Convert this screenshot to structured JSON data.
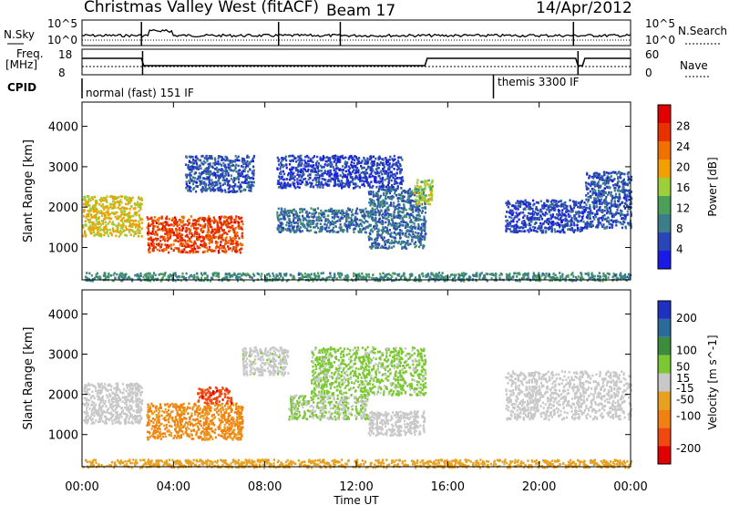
{
  "header": {
    "title": "Christmas Valley West (fitACF)",
    "beam": "Beam 17",
    "date": "14/Apr/2012"
  },
  "status_panels": {
    "nsky_label": "N.Sky",
    "nsky_tick_top": "10^5",
    "nsky_tick_bottom": "10^0",
    "nsearch_tick_top": "10^5",
    "nsearch_tick_bottom": "10^0",
    "nsearch_label": "N.Search",
    "freq_label_line1": "Freq.",
    "freq_label_line2": "[MHz]",
    "freq_tick_top": "18",
    "freq_tick_bottom": "8",
    "nave_tick_top": "60",
    "nave_tick_bottom": "0",
    "nave_label": "Nave",
    "cpid_label": "CPID",
    "cpid_segments": [
      "normal (fast) 151 IF",
      "themis 3300 IF"
    ]
  },
  "colors": {
    "power_scale": [
      "#1a1ae6",
      "#2a45b8",
      "#3b7e8a",
      "#4a9f5a",
      "#9ccf3a",
      "#f0a000",
      "#f07000",
      "#e83000",
      "#e00000"
    ],
    "velocity_scale": [
      "#2030c0",
      "#2a6b9a",
      "#3c8c3c",
      "#7bc832",
      "#c8c8c8",
      "#e8a020",
      "#f08010",
      "#f04810",
      "#e00000"
    ]
  },
  "chart_data": [
    {
      "type": "heatmap",
      "name": "power",
      "ylabel": "Slant Range [km]",
      "xlabel": "Time UT",
      "x_ticks": [
        "00:00",
        "04:00",
        "08:00",
        "12:00",
        "16:00",
        "20:00",
        "00:00"
      ],
      "x_range_hours": [
        0,
        24
      ],
      "y_ticks": [
        1000,
        2000,
        3000,
        4000
      ],
      "ylim": [
        200,
        4600
      ],
      "colorbar": {
        "label": "Power [dB]",
        "ticks": [
          4,
          8,
          12,
          16,
          20,
          24,
          28
        ],
        "range": [
          0,
          32
        ]
      },
      "regions": [
        {
          "t0": 0.0,
          "t1": 2.6,
          "r0": 1300,
          "r1": 2300,
          "value": 18
        },
        {
          "t0": 2.8,
          "t1": 7.0,
          "r0": 900,
          "r1": 1800,
          "value": 26
        },
        {
          "t0": 4.5,
          "t1": 7.5,
          "r0": 2400,
          "r1": 3300,
          "value": 6
        },
        {
          "t0": 8.5,
          "t1": 12.5,
          "r0": 1400,
          "r1": 2000,
          "value": 8
        },
        {
          "t0": 8.5,
          "t1": 14.0,
          "r0": 2500,
          "r1": 3300,
          "value": 5
        },
        {
          "t0": 12.5,
          "t1": 15.0,
          "r0": 1000,
          "r1": 2500,
          "value": 8
        },
        {
          "t0": 14.5,
          "t1": 15.3,
          "r0": 2100,
          "r1": 2700,
          "value": 16
        },
        {
          "t0": 18.5,
          "t1": 22.0,
          "r0": 1400,
          "r1": 2200,
          "value": 5
        },
        {
          "t0": 22.0,
          "t1": 24.0,
          "r0": 1500,
          "r1": 2900,
          "value": 6
        },
        {
          "t0": 0.0,
          "t1": 24.0,
          "r0": 200,
          "r1": 400,
          "value": 10
        }
      ]
    },
    {
      "type": "heatmap",
      "name": "velocity",
      "ylabel": "Slant Range [km]",
      "xlabel": "Time UT",
      "x_ticks": [
        "00:00",
        "04:00",
        "08:00",
        "12:00",
        "16:00",
        "20:00",
        "00:00"
      ],
      "x_range_hours": [
        0,
        24
      ],
      "y_ticks": [
        1000,
        2000,
        3000,
        4000
      ],
      "ylim": [
        200,
        4600
      ],
      "colorbar": {
        "label": "Velocity [m s^-1]",
        "ticks": [
          200,
          100,
          50,
          15,
          -15,
          -50,
          -100,
          -200
        ],
        "range": [
          -250,
          250
        ]
      },
      "regions": [
        {
          "t0": 0.0,
          "t1": 2.6,
          "r0": 1300,
          "r1": 2300,
          "value": 0
        },
        {
          "t0": 2.8,
          "t1": 7.0,
          "r0": 900,
          "r1": 1800,
          "value": -90
        },
        {
          "t0": 5.0,
          "t1": 6.5,
          "r0": 1800,
          "r1": 2200,
          "value": -180
        },
        {
          "t0": 7.0,
          "t1": 9.0,
          "r0": 2500,
          "r1": 3200,
          "value": 10
        },
        {
          "t0": 9.0,
          "t1": 12.5,
          "r0": 1400,
          "r1": 2000,
          "value": 30
        },
        {
          "t0": 10.0,
          "t1": 15.0,
          "r0": 2000,
          "r1": 3200,
          "value": 40
        },
        {
          "t0": 12.5,
          "t1": 15.0,
          "r0": 1000,
          "r1": 1600,
          "value": 0
        },
        {
          "t0": 18.5,
          "t1": 24.0,
          "r0": 1400,
          "r1": 2600,
          "value": 0
        },
        {
          "t0": 0.0,
          "t1": 24.0,
          "r0": 200,
          "r1": 400,
          "value": -60
        }
      ]
    }
  ]
}
